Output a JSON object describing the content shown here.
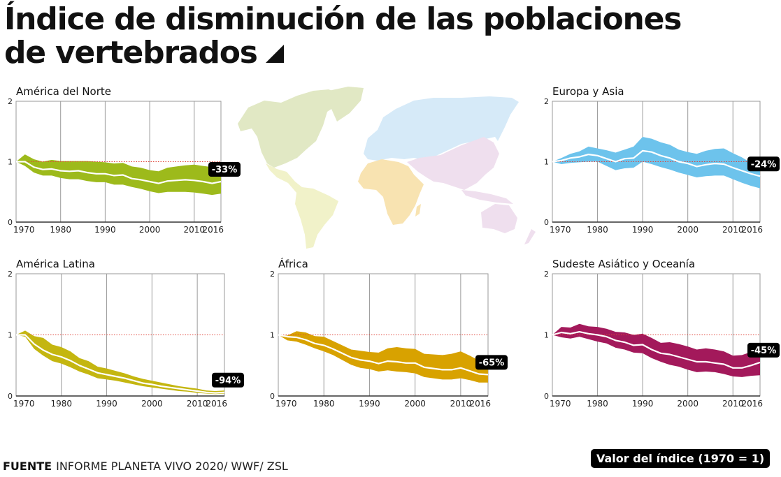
{
  "title": {
    "line1": "Índice de disminución de las poblaciones",
    "line2": "de vertebrados"
  },
  "footer": {
    "source_label": "FUENTE",
    "source_text": "INFORME PLANETA VIVO 2020/ WWF/ ZSL",
    "legend_label": "Valor del índice (1970 = 1)"
  },
  "map": {
    "regions": [
      {
        "name": "América del Norte",
        "color": "#e1e8c4"
      },
      {
        "name": "América Latina",
        "color": "#f1f2c9"
      },
      {
        "name": "Europa y Asia",
        "color": "#d6eaf8"
      },
      {
        "name": "África",
        "color": "#f8e3b1"
      },
      {
        "name": "Sudeste Asiático y Oceanía",
        "color": "#efdfee"
      }
    ]
  },
  "chart_data": [
    {
      "type": "area",
      "title": "América del Norte",
      "color": "#9dba1b",
      "change_label": "-33%",
      "x_ticks": [
        "1970",
        "1980",
        "1990",
        "2000",
        "2010",
        "2016"
      ],
      "y_ticks": [
        "0",
        "1",
        "2"
      ],
      "xlim": [
        1970,
        2016
      ],
      "ylim": [
        0,
        2
      ],
      "reference_line": 1,
      "x": [
        1970,
        1972,
        1974,
        1976,
        1978,
        1980,
        1982,
        1984,
        1986,
        1988,
        1990,
        1992,
        1994,
        1996,
        1998,
        2000,
        2002,
        2004,
        2006,
        2008,
        2010,
        2012,
        2014,
        2016
      ],
      "index": [
        1.0,
        1.0,
        0.91,
        0.87,
        0.88,
        0.85,
        0.84,
        0.85,
        0.82,
        0.8,
        0.8,
        0.77,
        0.78,
        0.72,
        0.7,
        0.67,
        0.64,
        0.68,
        0.69,
        0.7,
        0.69,
        0.67,
        0.64,
        0.67
      ],
      "upper": [
        1.0,
        1.12,
        1.04,
        1.0,
        1.03,
        1.01,
        1.01,
        1.01,
        1.01,
        1.0,
        0.99,
        0.97,
        0.98,
        0.92,
        0.9,
        0.86,
        0.84,
        0.9,
        0.92,
        0.94,
        0.95,
        0.93,
        0.91,
        0.96
      ],
      "lower": [
        1.0,
        0.93,
        0.82,
        0.77,
        0.77,
        0.73,
        0.71,
        0.71,
        0.68,
        0.66,
        0.66,
        0.62,
        0.62,
        0.58,
        0.55,
        0.51,
        0.48,
        0.5,
        0.5,
        0.5,
        0.49,
        0.47,
        0.45,
        0.47
      ]
    },
    {
      "type": "area",
      "title": "Europa y Asia",
      "color": "#6dc3ec",
      "change_label": "-24%",
      "x_ticks": [
        "1970",
        "1980",
        "1990",
        "2000",
        "2010",
        "2016"
      ],
      "y_ticks": [
        "0",
        "1",
        "2"
      ],
      "xlim": [
        1970,
        2016
      ],
      "ylim": [
        0,
        2
      ],
      "reference_line": 1,
      "x": [
        1970,
        1972,
        1974,
        1976,
        1978,
        1980,
        1982,
        1984,
        1986,
        1988,
        1990,
        1992,
        1994,
        1996,
        1998,
        2000,
        2002,
        2004,
        2006,
        2008,
        2010,
        2012,
        2014,
        2016
      ],
      "index": [
        1.0,
        1.02,
        1.06,
        1.08,
        1.12,
        1.1,
        1.05,
        1.0,
        1.05,
        1.06,
        1.18,
        1.16,
        1.1,
        1.06,
        1.0,
        0.97,
        0.92,
        0.95,
        0.97,
        0.96,
        0.9,
        0.85,
        0.8,
        0.76
      ],
      "upper": [
        1.0,
        1.06,
        1.13,
        1.17,
        1.25,
        1.22,
        1.19,
        1.15,
        1.2,
        1.25,
        1.41,
        1.38,
        1.32,
        1.28,
        1.2,
        1.16,
        1.13,
        1.18,
        1.21,
        1.22,
        1.14,
        1.07,
        0.98,
        0.93
      ],
      "lower": [
        1.0,
        0.96,
        0.98,
        0.99,
        1.0,
        1.0,
        0.93,
        0.86,
        0.89,
        0.9,
        1.0,
        0.96,
        0.91,
        0.87,
        0.82,
        0.78,
        0.74,
        0.76,
        0.77,
        0.77,
        0.71,
        0.65,
        0.6,
        0.56
      ]
    },
    {
      "type": "area",
      "title": "América Latina",
      "color": "#c4b610",
      "change_label": "-94%",
      "x_ticks": [
        "1970",
        "1980",
        "1990",
        "2000",
        "2010",
        "2016"
      ],
      "y_ticks": [
        "0",
        "1",
        "2"
      ],
      "xlim": [
        1970,
        2016
      ],
      "ylim": [
        0,
        2
      ],
      "reference_line": 1,
      "x": [
        1970,
        1972,
        1974,
        1976,
        1978,
        1980,
        1982,
        1984,
        1986,
        1988,
        1990,
        1992,
        1994,
        1996,
        1998,
        2000,
        2002,
        2004,
        2006,
        2008,
        2010,
        2012,
        2014,
        2016
      ],
      "index": [
        1.0,
        1.0,
        0.85,
        0.75,
        0.68,
        0.64,
        0.58,
        0.5,
        0.44,
        0.38,
        0.35,
        0.32,
        0.29,
        0.25,
        0.21,
        0.19,
        0.16,
        0.14,
        0.12,
        0.1,
        0.08,
        0.06,
        0.05,
        0.06
      ],
      "upper": [
        1.0,
        1.07,
        0.98,
        0.95,
        0.84,
        0.8,
        0.73,
        0.62,
        0.57,
        0.48,
        0.45,
        0.41,
        0.37,
        0.32,
        0.28,
        0.25,
        0.22,
        0.19,
        0.16,
        0.14,
        0.12,
        0.09,
        0.08,
        0.09
      ],
      "lower": [
        1.0,
        0.97,
        0.77,
        0.66,
        0.57,
        0.53,
        0.47,
        0.4,
        0.35,
        0.29,
        0.27,
        0.25,
        0.22,
        0.19,
        0.16,
        0.14,
        0.12,
        0.1,
        0.08,
        0.07,
        0.05,
        0.04,
        0.03,
        0.04
      ]
    },
    {
      "type": "area",
      "title": "África",
      "color": "#d8a200",
      "change_label": "-65%",
      "x_ticks": [
        "1970",
        "1980",
        "1990",
        "2000",
        "2010",
        "2016"
      ],
      "y_ticks": [
        "0",
        "1",
        "2"
      ],
      "xlim": [
        1970,
        2016
      ],
      "ylim": [
        0,
        2
      ],
      "reference_line": 1,
      "x": [
        1970,
        1972,
        1974,
        1976,
        1978,
        1980,
        1982,
        1984,
        1986,
        1988,
        1990,
        1992,
        1994,
        1996,
        1998,
        2000,
        2002,
        2004,
        2006,
        2008,
        2010,
        2012,
        2014,
        2016
      ],
      "index": [
        1.0,
        0.97,
        0.96,
        0.92,
        0.86,
        0.83,
        0.77,
        0.7,
        0.63,
        0.59,
        0.57,
        0.53,
        0.57,
        0.56,
        0.54,
        0.54,
        0.47,
        0.45,
        0.43,
        0.43,
        0.46,
        0.41,
        0.36,
        0.35
      ],
      "upper": [
        1.0,
        0.99,
        1.06,
        1.04,
        0.98,
        0.97,
        0.9,
        0.83,
        0.76,
        0.74,
        0.72,
        0.71,
        0.78,
        0.8,
        0.78,
        0.77,
        0.69,
        0.68,
        0.67,
        0.69,
        0.73,
        0.66,
        0.58,
        0.55
      ],
      "lower": [
        1.0,
        0.91,
        0.89,
        0.84,
        0.78,
        0.73,
        0.67,
        0.59,
        0.51,
        0.46,
        0.44,
        0.4,
        0.42,
        0.4,
        0.39,
        0.37,
        0.31,
        0.29,
        0.27,
        0.27,
        0.29,
        0.26,
        0.22,
        0.22
      ]
    },
    {
      "type": "area",
      "title": "Sudeste Asiático y Oceanía",
      "color": "#a3195b",
      "change_label": "-45%",
      "x_ticks": [
        "1970",
        "1980",
        "1990",
        "2000",
        "2010",
        "2016"
      ],
      "y_ticks": [
        "0",
        "1",
        "2"
      ],
      "xlim": [
        1970,
        2016
      ],
      "ylim": [
        0,
        2
      ],
      "reference_line": 1,
      "x": [
        1970,
        1972,
        1974,
        1976,
        1978,
        1980,
        1982,
        1984,
        1986,
        1988,
        1990,
        1992,
        1994,
        1996,
        1998,
        2000,
        2002,
        2004,
        2006,
        2008,
        2010,
        2012,
        2014,
        2016
      ],
      "index": [
        1.0,
        1.04,
        1.02,
        1.05,
        1.02,
        1.0,
        0.97,
        0.91,
        0.88,
        0.83,
        0.84,
        0.76,
        0.7,
        0.68,
        0.64,
        0.6,
        0.56,
        0.56,
        0.54,
        0.52,
        0.46,
        0.46,
        0.5,
        0.55
      ],
      "upper": [
        1.0,
        1.13,
        1.12,
        1.18,
        1.14,
        1.13,
        1.1,
        1.05,
        1.04,
        1.0,
        1.02,
        0.95,
        0.87,
        0.88,
        0.85,
        0.81,
        0.76,
        0.78,
        0.76,
        0.73,
        0.66,
        0.67,
        0.72,
        0.78
      ],
      "lower": [
        1.0,
        0.96,
        0.94,
        0.97,
        0.93,
        0.89,
        0.86,
        0.79,
        0.76,
        0.71,
        0.7,
        0.62,
        0.56,
        0.51,
        0.48,
        0.43,
        0.39,
        0.4,
        0.39,
        0.36,
        0.32,
        0.31,
        0.33,
        0.34
      ]
    }
  ]
}
